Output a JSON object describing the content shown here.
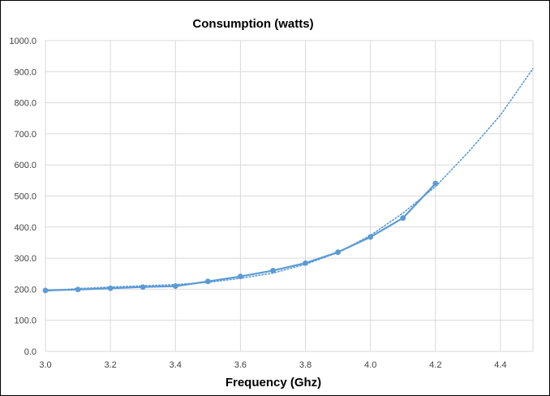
{
  "chart_data": {
    "type": "line",
    "title": "Consumption (watts)",
    "xlabel": "Frequency (Ghz)",
    "ylabel": "",
    "xlim": [
      3.0,
      4.5
    ],
    "ylim": [
      0,
      1000
    ],
    "x_ticks": [
      "3.0",
      "3.2",
      "3.4",
      "3.6",
      "3.8",
      "4.0",
      "4.2",
      "4.4"
    ],
    "y_ticks": [
      "0.0",
      "100.0",
      "200.0",
      "300.0",
      "400.0",
      "500.0",
      "600.0",
      "700.0",
      "800.0",
      "900.0",
      "1000.0"
    ],
    "grid": true,
    "legend": "none",
    "series": [
      {
        "style": "solid-with-markers",
        "color": "#5b9bd5",
        "x": [
          3.0,
          3.1,
          3.2,
          3.3,
          3.4,
          3.5,
          3.6,
          3.7,
          3.8,
          3.9,
          4.0,
          4.1,
          4.2
        ],
        "values": [
          196,
          199,
          203,
          207,
          210,
          225,
          241,
          260,
          284,
          319,
          368,
          429,
          540
        ]
      },
      {
        "style": "dotted-trendline",
        "color": "#5b9bd5",
        "x": [
          3.0,
          3.1,
          3.2,
          3.3,
          3.4,
          3.5,
          3.6,
          3.7,
          3.8,
          3.9,
          4.0,
          4.1,
          4.2,
          4.3,
          4.4,
          4.5
        ],
        "values": [
          194,
          202,
          207,
          211,
          215,
          222,
          235,
          252,
          280,
          318,
          373,
          445,
          530,
          640,
          760,
          910
        ]
      }
    ]
  }
}
